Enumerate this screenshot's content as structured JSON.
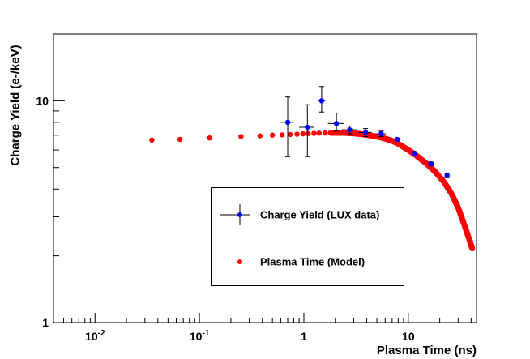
{
  "chart_data": {
    "type": "scatter",
    "title": "",
    "xlabel": "Plasma Time (ns)",
    "ylabel": "Charge Yield (e-/keV)",
    "xscale": "log",
    "yscale": "log",
    "xlim": [
      0.004,
      45
    ],
    "ylim": [
      1,
      20
    ],
    "xticks": [
      {
        "value": 0.01,
        "label": "10",
        "sup": "-2"
      },
      {
        "value": 0.1,
        "label": "10",
        "sup": "-1"
      },
      {
        "value": 1,
        "label": "1",
        "sup": ""
      },
      {
        "value": 10,
        "label": "10",
        "sup": ""
      }
    ],
    "yticks": [
      {
        "value": 1,
        "label": "1"
      },
      {
        "value": 10,
        "label": "10"
      }
    ],
    "grid": false,
    "legend_position": "center-right",
    "series": [
      {
        "name": "Charge Yield (LUX data)",
        "kind": "errorbar",
        "color": "#0000ff",
        "points": [
          {
            "x": 0.7,
            "y": 8.0,
            "xerr": 0.1,
            "y_low": 5.6,
            "y_high": 10.4
          },
          {
            "x": 1.08,
            "y": 7.6,
            "xerr": 0.18,
            "y_low": 5.6,
            "y_high": 9.6
          },
          {
            "x": 1.48,
            "y": 10.0,
            "xerr": 0.12,
            "y_low": 8.9,
            "y_high": 11.6
          },
          {
            "x": 2.05,
            "y": 7.9,
            "xerr": 0.35,
            "y_low": 7.3,
            "y_high": 8.8
          },
          {
            "x": 2.75,
            "y": 7.4,
            "xerr": 0.45,
            "y_low": 7.1,
            "y_high": 7.7
          },
          {
            "x": 3.9,
            "y": 7.2,
            "xerr": 0.55,
            "y_low": 6.9,
            "y_high": 7.5
          },
          {
            "x": 5.5,
            "y": 7.1,
            "xerr": 0.6,
            "y_low": 6.9,
            "y_high": 7.3
          },
          {
            "x": 7.8,
            "y": 6.7,
            "xerr": 0.0,
            "y_low": 6.6,
            "y_high": 6.8
          },
          {
            "x": 11.5,
            "y": 5.8,
            "xerr": 0.0,
            "y_low": 5.7,
            "y_high": 5.9
          },
          {
            "x": 16.5,
            "y": 5.2,
            "xerr": 0.0,
            "y_low": 5.1,
            "y_high": 5.3
          },
          {
            "x": 23.5,
            "y": 4.6,
            "xerr": 0.0,
            "y_low": 4.5,
            "y_high": 4.7
          }
        ]
      },
      {
        "name": "Plasma Time (Model)",
        "kind": "points",
        "color": "#ff0000",
        "points": [
          {
            "x": 0.035,
            "y": 6.65
          },
          {
            "x": 0.065,
            "y": 6.7
          },
          {
            "x": 0.125,
            "y": 6.8
          },
          {
            "x": 0.25,
            "y": 6.9
          },
          {
            "x": 0.38,
            "y": 6.95
          },
          {
            "x": 0.5,
            "y": 7.0
          },
          {
            "x": 0.62,
            "y": 7.02
          },
          {
            "x": 0.74,
            "y": 7.05
          },
          {
            "x": 0.86,
            "y": 7.07
          },
          {
            "x": 0.98,
            "y": 7.1
          },
          {
            "x": 1.1,
            "y": 7.12
          },
          {
            "x": 1.25,
            "y": 7.13
          },
          {
            "x": 1.4,
            "y": 7.15
          },
          {
            "x": 1.6,
            "y": 7.16
          },
          {
            "x": 1.8,
            "y": 7.17
          },
          {
            "x": 2.0,
            "y": 7.18
          },
          {
            "x": 2.3,
            "y": 7.17
          },
          {
            "x": 2.6,
            "y": 7.16
          },
          {
            "x": 3.0,
            "y": 7.13
          },
          {
            "x": 3.5,
            "y": 7.08
          },
          {
            "x": 4.0,
            "y": 7.02
          },
          {
            "x": 5.0,
            "y": 6.9
          },
          {
            "x": 6.0,
            "y": 6.75
          },
          {
            "x": 7.0,
            "y": 6.6
          },
          {
            "x": 8.0,
            "y": 6.4
          },
          {
            "x": 10.0,
            "y": 6.0
          },
          {
            "x": 12.0,
            "y": 5.65
          },
          {
            "x": 15.0,
            "y": 5.2
          },
          {
            "x": 18.0,
            "y": 4.8
          },
          {
            "x": 22.0,
            "y": 4.3
          },
          {
            "x": 26.0,
            "y": 3.8
          },
          {
            "x": 30.0,
            "y": 3.3
          },
          {
            "x": 34.0,
            "y": 2.8
          },
          {
            "x": 38.0,
            "y": 2.4
          },
          {
            "x": 41.0,
            "y": 2.15
          }
        ]
      }
    ]
  }
}
